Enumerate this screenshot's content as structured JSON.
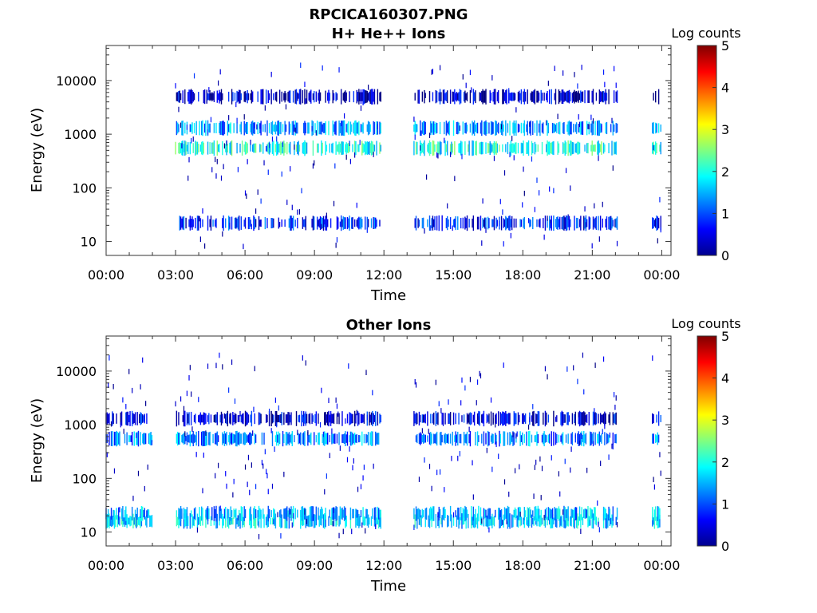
{
  "figure": {
    "title": "RPCICA160307.PNG"
  },
  "chart_data": [
    {
      "type": "heatmap",
      "title": "H+ He++ Ions",
      "xlabel": "Time",
      "ylabel": "Energy (eV)",
      "x_ticks": [
        "00:00",
        "03:00",
        "06:00",
        "09:00",
        "12:00",
        "15:00",
        "18:00",
        "21:00",
        "00:00"
      ],
      "x_range_hours": [
        0,
        24.4
      ],
      "y_scale": "log",
      "y_range": [
        5.5,
        45000
      ],
      "y_ticks": [
        {
          "value": 10,
          "label": "10"
        },
        {
          "value": 100,
          "label": "100"
        },
        {
          "value": 1000,
          "label": "1000"
        },
        {
          "value": 10000,
          "label": "10000"
        }
      ],
      "colorbar": {
        "label": "Log counts",
        "range": [
          0,
          5
        ],
        "ticks": [
          "0",
          "1",
          "2",
          "3",
          "4",
          "5"
        ],
        "colormap": "jet"
      },
      "data_intervals_hours": [
        [
          3.0,
          11.9
        ],
        [
          13.3,
          22.1
        ],
        [
          23.6,
          24.0
        ]
      ],
      "bands": [
        {
          "energy_eV": 22,
          "log_counts": 0.7
        },
        {
          "energy_eV": 550,
          "log_counts": 1.9
        },
        {
          "energy_eV": 1300,
          "log_counts": 1.3
        },
        {
          "energy_eV": 5000,
          "log_counts": 0.3
        }
      ]
    },
    {
      "type": "heatmap",
      "title": "Other Ions",
      "xlabel": "Time",
      "ylabel": "Energy (eV)",
      "x_ticks": [
        "00:00",
        "03:00",
        "06:00",
        "09:00",
        "12:00",
        "15:00",
        "18:00",
        "21:00",
        "00:00"
      ],
      "x_range_hours": [
        0,
        24.4
      ],
      "y_scale": "log",
      "y_range": [
        5.5,
        45000
      ],
      "y_ticks": [
        {
          "value": 10,
          "label": "10"
        },
        {
          "value": 100,
          "label": "100"
        },
        {
          "value": 1000,
          "label": "1000"
        },
        {
          "value": 10000,
          "label": "10000"
        }
      ],
      "colorbar": {
        "label": "Log counts",
        "range": [
          0,
          5
        ],
        "ticks": [
          "0",
          "1",
          "2",
          "3",
          "4",
          "5"
        ],
        "colormap": "jet"
      },
      "data_intervals_hours": [
        [
          0.0,
          2.0
        ],
        [
          3.0,
          11.9
        ],
        [
          13.3,
          22.1
        ],
        [
          23.6,
          24.0
        ]
      ],
      "bands": [
        {
          "energy_eV": 16,
          "log_counts": 1.6
        },
        {
          "energy_eV": 22,
          "log_counts": 1.4
        },
        {
          "energy_eV": 550,
          "log_counts": 1.2
        },
        {
          "energy_eV": 1300,
          "log_counts": 0.4
        }
      ]
    }
  ]
}
